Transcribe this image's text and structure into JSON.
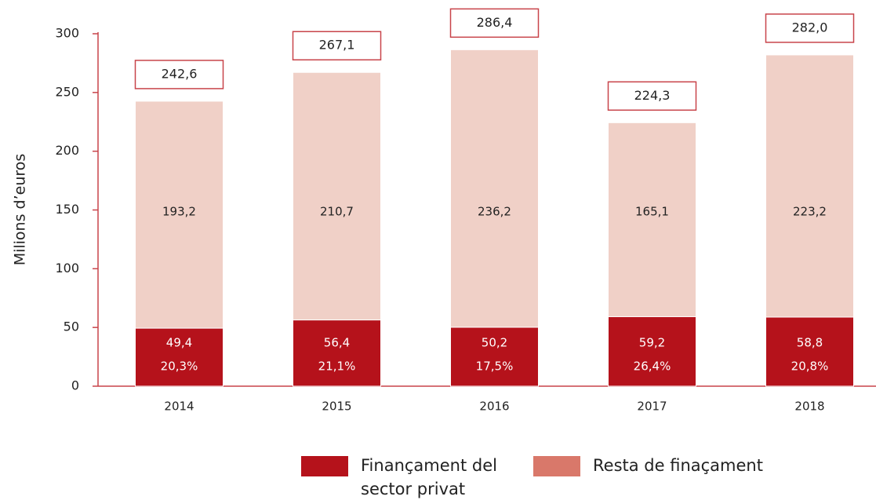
{
  "chart_data": {
    "type": "stacked_bar",
    "y_label": "Milions d’euros",
    "categories": [
      "2014",
      "2015",
      "2016",
      "2017",
      "2018"
    ],
    "series": [
      {
        "name": "Finançament del sector privat",
        "color": "#b5121b",
        "legend_color": "#b5121b",
        "values": [
          49.4,
          56.4,
          50.2,
          59.2,
          58.8
        ],
        "value_labels": [
          "49,4",
          "56,4",
          "50,2",
          "59,2",
          "58,8"
        ],
        "percent_labels": [
          "20,3%",
          "21,1%",
          "17,5%",
          "26,4%",
          "20,8%"
        ]
      },
      {
        "name": "Resta de finaçament",
        "color": "#f0d0c7",
        "legend_color": "#d9786a",
        "values": [
          193.2,
          210.7,
          236.2,
          165.1,
          223.2
        ],
        "value_labels": [
          "193,2",
          "210,7",
          "236,2",
          "165,1",
          "223,2"
        ]
      }
    ],
    "totals": [
      242.6,
      267.1,
      286.4,
      224.3,
      282.0
    ],
    "total_labels": [
      "242,6",
      "267,1",
      "286,4",
      "224,3",
      "282,0"
    ],
    "ylim": [
      0,
      300
    ],
    "yticks": [
      0,
      50,
      100,
      150,
      200,
      250,
      300
    ],
    "grid": false
  }
}
